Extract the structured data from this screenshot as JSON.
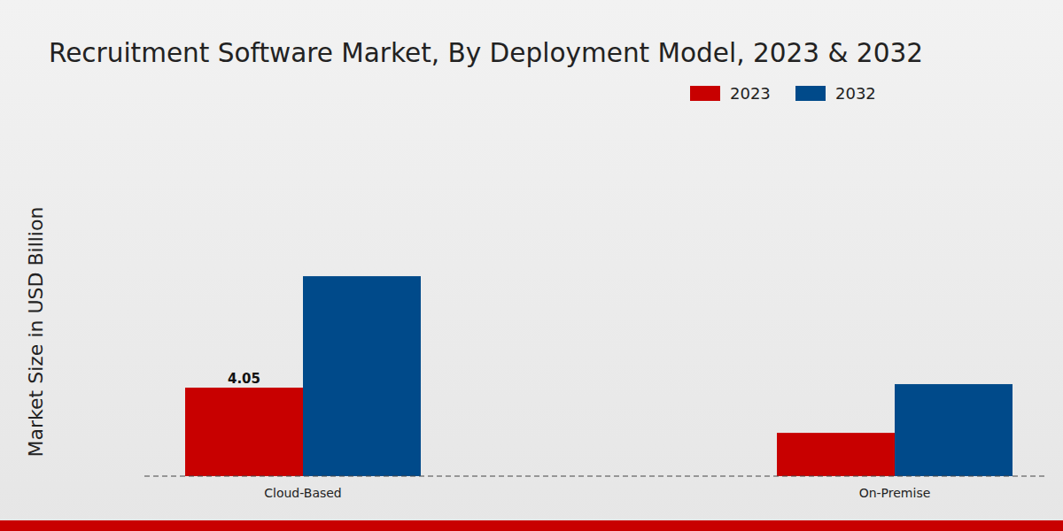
{
  "chart_data": {
    "type": "bar",
    "title": "Recruitment Software Market, By Deployment Model, 2023 & 2032",
    "y_label": "Market Size in USD Billion",
    "categories": [
      "Cloud-Based",
      "On-Premise"
    ],
    "series": [
      {
        "name": "2023",
        "color": "#c80000",
        "values": [
          4.05,
          1.98
        ],
        "value_labels": [
          "4.05",
          null
        ]
      },
      {
        "name": "2032",
        "color": "#004a8a",
        "values": [
          9.15,
          4.21
        ],
        "value_labels": [
          null,
          null
        ]
      }
    ],
    "ylim": [
      0,
      16.2
    ],
    "grid": false,
    "legend": "top-right",
    "data_labels": true,
    "tick_labels": "x"
  }
}
